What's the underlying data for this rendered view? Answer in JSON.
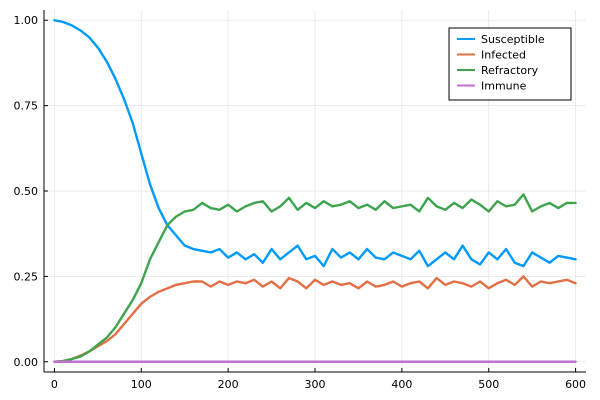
{
  "chart_data": {
    "type": "line",
    "title": "",
    "xlabel": "",
    "ylabel": "",
    "xlim": [
      -12,
      612
    ],
    "ylim": [
      -0.03,
      1.03
    ],
    "grid": true,
    "legend_position": "top-right",
    "x_ticks": [
      0,
      100,
      200,
      300,
      400,
      500,
      600
    ],
    "x_tick_labels": [
      "0",
      "100",
      "200",
      "300",
      "400",
      "500",
      "600"
    ],
    "y_ticks": [
      0,
      0.25,
      0.5,
      0.75,
      1.0
    ],
    "y_tick_labels": [
      "0.00",
      "0.25",
      "0.50",
      "0.75",
      "1.00"
    ],
    "series": [
      {
        "name": "Susceptible",
        "color": "#009AFA",
        "x": [
          0,
          10,
          20,
          30,
          40,
          50,
          60,
          70,
          80,
          90,
          100,
          110,
          120,
          130,
          140,
          150,
          160,
          170,
          180,
          190,
          200,
          210,
          220,
          230,
          240,
          250,
          260,
          270,
          280,
          290,
          300,
          310,
          320,
          330,
          340,
          350,
          360,
          370,
          380,
          390,
          400,
          410,
          420,
          430,
          440,
          450,
          460,
          470,
          480,
          490,
          500,
          510,
          520,
          530,
          540,
          550,
          560,
          570,
          580,
          590,
          600
        ],
        "values": [
          1.0,
          0.995,
          0.985,
          0.97,
          0.95,
          0.92,
          0.88,
          0.83,
          0.77,
          0.7,
          0.61,
          0.52,
          0.45,
          0.4,
          0.37,
          0.34,
          0.33,
          0.325,
          0.32,
          0.33,
          0.305,
          0.32,
          0.3,
          0.315,
          0.29,
          0.33,
          0.3,
          0.32,
          0.34,
          0.3,
          0.31,
          0.28,
          0.33,
          0.305,
          0.32,
          0.3,
          0.33,
          0.305,
          0.3,
          0.32,
          0.31,
          0.3,
          0.325,
          0.28,
          0.3,
          0.32,
          0.3,
          0.34,
          0.3,
          0.285,
          0.32,
          0.3,
          0.33,
          0.29,
          0.28,
          0.32,
          0.305,
          0.29,
          0.31,
          0.305,
          0.3
        ]
      },
      {
        "name": "Infected",
        "color": "#E26F46",
        "x": [
          0,
          10,
          20,
          30,
          40,
          50,
          60,
          70,
          80,
          90,
          100,
          110,
          120,
          130,
          140,
          150,
          160,
          170,
          180,
          190,
          200,
          210,
          220,
          230,
          240,
          250,
          260,
          270,
          280,
          290,
          300,
          310,
          320,
          330,
          340,
          350,
          360,
          370,
          380,
          390,
          400,
          410,
          420,
          430,
          440,
          450,
          460,
          470,
          480,
          490,
          500,
          510,
          520,
          530,
          540,
          550,
          560,
          570,
          580,
          590,
          600
        ],
        "values": [
          0.0,
          0.002,
          0.008,
          0.018,
          0.03,
          0.045,
          0.06,
          0.08,
          0.11,
          0.14,
          0.17,
          0.19,
          0.205,
          0.215,
          0.225,
          0.23,
          0.235,
          0.235,
          0.22,
          0.235,
          0.225,
          0.235,
          0.23,
          0.24,
          0.22,
          0.235,
          0.215,
          0.245,
          0.235,
          0.215,
          0.24,
          0.225,
          0.235,
          0.225,
          0.23,
          0.215,
          0.235,
          0.22,
          0.225,
          0.235,
          0.22,
          0.23,
          0.235,
          0.215,
          0.245,
          0.225,
          0.235,
          0.23,
          0.22,
          0.235,
          0.215,
          0.23,
          0.24,
          0.225,
          0.25,
          0.22,
          0.235,
          0.23,
          0.235,
          0.24,
          0.23
        ]
      },
      {
        "name": "Refractory",
        "color": "#3EA44E",
        "x": [
          0,
          10,
          20,
          30,
          40,
          50,
          60,
          70,
          80,
          90,
          100,
          110,
          120,
          130,
          140,
          150,
          160,
          170,
          180,
          190,
          200,
          210,
          220,
          230,
          240,
          250,
          260,
          270,
          280,
          290,
          300,
          310,
          320,
          330,
          340,
          350,
          360,
          370,
          380,
          390,
          400,
          410,
          420,
          430,
          440,
          450,
          460,
          470,
          480,
          490,
          500,
          510,
          520,
          530,
          540,
          550,
          560,
          570,
          580,
          590,
          600
        ],
        "values": [
          0.0,
          0.002,
          0.008,
          0.015,
          0.03,
          0.05,
          0.07,
          0.1,
          0.14,
          0.18,
          0.23,
          0.3,
          0.35,
          0.4,
          0.425,
          0.44,
          0.445,
          0.465,
          0.45,
          0.445,
          0.46,
          0.44,
          0.455,
          0.465,
          0.47,
          0.44,
          0.455,
          0.48,
          0.445,
          0.465,
          0.45,
          0.47,
          0.455,
          0.46,
          0.47,
          0.45,
          0.46,
          0.445,
          0.47,
          0.45,
          0.455,
          0.46,
          0.44,
          0.48,
          0.455,
          0.445,
          0.465,
          0.45,
          0.475,
          0.46,
          0.44,
          0.47,
          0.455,
          0.46,
          0.49,
          0.44,
          0.455,
          0.465,
          0.45,
          0.465,
          0.465
        ]
      },
      {
        "name": "Immune",
        "color": "#C271D2",
        "x": [
          0,
          600
        ],
        "values": [
          0.0,
          0.0
        ]
      }
    ]
  }
}
